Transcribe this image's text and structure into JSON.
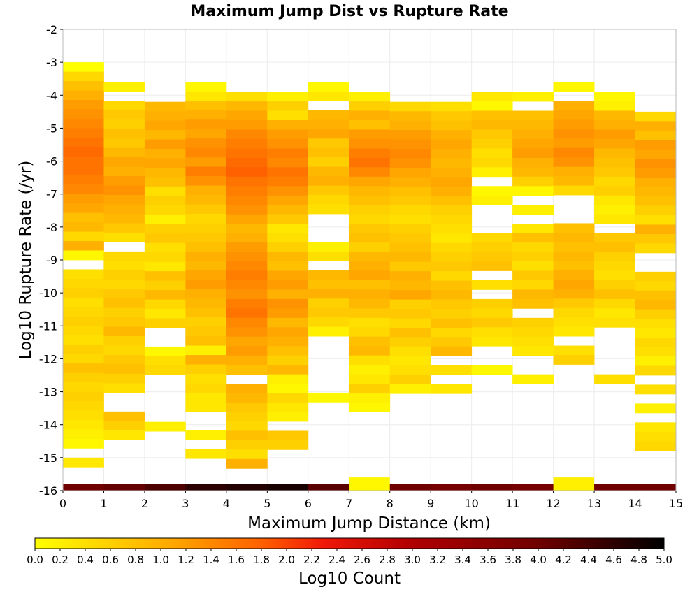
{
  "chart_data": {
    "type": "heatmap",
    "title": "Maximum Jump Dist vs Rupture Rate",
    "xlabel": "Maximum Jump Distance (km)",
    "ylabel": "Log10 Rupture Rate (/yr)",
    "xlim": [
      0,
      15
    ],
    "ylim": [
      -16,
      -2
    ],
    "x_ticks": [
      "0",
      "1",
      "2",
      "3",
      "4",
      "5",
      "6",
      "7",
      "8",
      "9",
      "10",
      "11",
      "12",
      "13",
      "14",
      "15"
    ],
    "y_ticks": [
      "-2",
      "-3",
      "-4",
      "-5",
      "-6",
      "-7",
      "-8",
      "-9",
      "-10",
      "-11",
      "-12",
      "-13",
      "-14",
      "-15",
      "-16"
    ],
    "grid": true,
    "x_bin_width_km": 1,
    "y_bin_height_log10": 0.2857,
    "colorbar": {
      "label": "Log10 Count",
      "range": [
        0.0,
        5.0
      ],
      "ticks": [
        "0.0",
        "0.2",
        "0.4",
        "0.6",
        "0.8",
        "1.0",
        "1.2",
        "1.4",
        "1.6",
        "1.8",
        "2.0",
        "2.2",
        "2.4",
        "2.6",
        "2.8",
        "3.0",
        "3.2",
        "3.4",
        "3.6",
        "3.8",
        "4.0",
        "4.2",
        "4.4",
        "4.6",
        "4.8",
        "5.0"
      ],
      "stops": [
        {
          "v": 0.0,
          "c": "#ffff00"
        },
        {
          "v": 1.0,
          "c": "#ffb000"
        },
        {
          "v": 1.8,
          "c": "#ff6000"
        },
        {
          "v": 2.3,
          "c": "#f01808"
        },
        {
          "v": 3.0,
          "c": "#b00000"
        },
        {
          "v": 4.0,
          "c": "#700000"
        },
        {
          "v": 5.0,
          "c": "#000000"
        }
      ]
    },
    "bottom_row_y": -15.9,
    "bottom_row_values": [
      4.0,
      4.1,
      4.3,
      4.6,
      4.7,
      4.8,
      4.2,
      0.1,
      4.0,
      3.9,
      4.0,
      3.9,
      0.2,
      4.0,
      4.0
    ],
    "columns": [
      {
        "x": 0.5,
        "y_top": -3.0,
        "values": [
          0.0,
          0.5,
          0.8,
          1.0,
          1.2,
          1.3,
          1.4,
          1.5,
          1.6,
          1.7,
          1.6,
          1.6,
          1.5,
          1.4,
          1.2,
          1.1,
          0.8,
          0.9,
          0.5,
          1.0,
          0.1,
          null,
          0.4,
          0.5,
          0.6,
          0.4,
          0.5,
          0.6,
          0.5,
          0.4,
          0.6,
          0.5,
          0.8,
          0.6,
          0.5,
          0.6,
          0.5,
          0.4,
          0.3,
          0.2,
          0.1,
          null,
          0.3
        ]
      },
      {
        "x": 1.5,
        "y_top": -3.6,
        "values": [
          0.2,
          null,
          0.5,
          0.7,
          0.6,
          0.8,
          0.7,
          0.9,
          1.1,
          1.0,
          1.2,
          1.3,
          1.1,
          1.0,
          0.9,
          0.7,
          0.4,
          null,
          0.5,
          0.4,
          0.6,
          0.5,
          0.7,
          0.8,
          0.6,
          0.7,
          0.9,
          0.6,
          0.5,
          0.7,
          0.8,
          0.6,
          0.4,
          null,
          null,
          0.8,
          0.6,
          0.3
        ]
      },
      {
        "x": 2.5,
        "y_top": -4.2,
        "values": [
          0.9,
          1.0,
          1.1,
          0.9,
          1.2,
          1.0,
          1.1,
          0.9,
          0.8,
          0.4,
          0.6,
          0.5,
          0.2,
          0.6,
          0.7,
          0.4,
          0.5,
          0.3,
          0.8,
          0.6,
          0.9,
          0.5,
          0.3,
          0.6,
          null,
          null,
          0.1,
          0.4,
          0.5,
          null,
          null,
          null,
          null,
          null,
          0.2
        ]
      },
      {
        "x": 3.5,
        "y_top": -3.6,
        "values": [
          0.1,
          0.3,
          0.8,
          1.0,
          1.2,
          1.1,
          1.3,
          1.4,
          1.2,
          1.5,
          1.3,
          1.0,
          0.9,
          0.7,
          0.5,
          0.6,
          0.7,
          0.8,
          1.0,
          0.9,
          1.1,
          1.2,
          1.0,
          0.9,
          0.8,
          0.6,
          0.7,
          0.8,
          0.2,
          1.0,
          0.6,
          0.4,
          0.5,
          0.3,
          0.3,
          null,
          null,
          0.2,
          null,
          0.3
        ]
      },
      {
        "x": 4.5,
        "y_top": -3.9,
        "values": [
          0.4,
          0.9,
          1.1,
          1.2,
          1.4,
          1.5,
          1.6,
          1.7,
          1.8,
          1.6,
          1.5,
          1.4,
          1.3,
          1.1,
          0.9,
          1.0,
          1.2,
          1.3,
          1.4,
          1.5,
          1.4,
          1.3,
          1.5,
          1.6,
          1.4,
          1.3,
          1.1,
          1.2,
          1.0,
          0.8,
          null,
          1.0,
          0.9,
          0.7,
          0.6,
          0.5,
          0.8,
          0.6,
          0.4,
          1.0
        ]
      },
      {
        "x": 5.5,
        "y_top": -3.9,
        "values": [
          0.2,
          0.6,
          0.4,
          1.0,
          1.2,
          1.3,
          1.5,
          1.4,
          1.6,
          1.5,
          1.3,
          1.1,
          0.9,
          0.7,
          0.3,
          0.4,
          0.6,
          0.9,
          0.8,
          1.1,
          1.2,
          1.0,
          1.3,
          1.2,
          0.9,
          1.1,
          1.0,
          0.8,
          0.6,
          0.9,
          0.2,
          0.1,
          0.5,
          0.3,
          0.2,
          null,
          0.7,
          0.6
        ]
      },
      {
        "x": 6.5,
        "y_top": -3.6,
        "values": [
          0.1,
          0.3,
          null,
          0.9,
          1.0,
          1.1,
          0.7,
          0.8,
          0.6,
          0.9,
          1.0,
          0.7,
          0.5,
          0.4,
          null,
          null,
          null,
          0.2,
          0.4,
          null,
          0.9,
          0.8,
          1.0,
          0.6,
          0.7,
          0.5,
          0.2,
          null,
          null,
          null,
          null,
          null,
          null,
          0.1,
          null
        ]
      },
      {
        "x": 7.5,
        "y_top": -3.9,
        "values": [
          0.2,
          0.6,
          1.0,
          0.8,
          1.2,
          1.3,
          1.5,
          1.6,
          1.4,
          1.1,
          0.9,
          0.8,
          0.6,
          0.5,
          0.7,
          0.8,
          0.6,
          0.9,
          1.0,
          1.1,
          0.8,
          1.0,
          0.9,
          0.7,
          0.4,
          0.5,
          0.8,
          0.9,
          0.4,
          0.2,
          0.3,
          0.6,
          0.2,
          0.1
        ]
      },
      {
        "x": 8.5,
        "y_top": -4.2,
        "values": [
          0.5,
          0.9,
          1.0,
          1.2,
          1.3,
          1.4,
          1.3,
          1.1,
          1.0,
          0.8,
          0.7,
          0.5,
          0.4,
          0.6,
          0.7,
          0.8,
          0.9,
          0.7,
          1.0,
          0.9,
          1.1,
          0.6,
          0.7,
          0.5,
          0.8,
          0.6,
          0.4,
          0.3,
          0.4,
          0.6,
          0.2
        ]
      },
      {
        "x": 9.5,
        "y_top": -4.2,
        "values": [
          0.4,
          0.7,
          0.8,
          1.0,
          1.1,
          1.0,
          0.9,
          1.0,
          1.1,
          1.0,
          0.8,
          0.6,
          0.5,
          0.4,
          0.3,
          0.5,
          0.6,
          0.7,
          0.5,
          0.8,
          0.9,
          0.7,
          0.6,
          0.8,
          0.5,
          0.7,
          0.9,
          null,
          0.4,
          null,
          0.3
        ]
      },
      {
        "x": 10.5,
        "y_top": -3.9,
        "values": [
          0.3,
          0.1,
          0.8,
          0.9,
          0.7,
          0.6,
          0.4,
          0.5,
          0.2,
          null,
          0.1,
          0.2,
          null,
          null,
          null,
          0.5,
          0.6,
          0.7,
          0.8,
          null,
          0.4,
          null,
          0.6,
          0.5,
          0.7,
          0.4,
          0.3,
          null,
          null,
          0.1
        ]
      },
      {
        "x": 11.5,
        "y_top": -3.9,
        "values": [
          0.2,
          null,
          0.8,
          0.9,
          1.0,
          1.1,
          1.2,
          1.0,
          0.9,
          0.6,
          0.1,
          null,
          0.2,
          null,
          0.3,
          0.8,
          0.5,
          0.6,
          0.4,
          0.7,
          0.5,
          0.9,
          0.8,
          null,
          0.6,
          0.5,
          0.4,
          0.3,
          null,
          null,
          0.2
        ]
      },
      {
        "x": 12.5,
        "y_top": -3.6,
        "values": [
          0.1,
          null,
          1.0,
          1.1,
          1.2,
          1.3,
          1.2,
          1.4,
          1.3,
          1.0,
          0.9,
          0.5,
          null,
          null,
          null,
          0.8,
          0.9,
          0.8,
          0.9,
          0.8,
          1.0,
          1.1,
          1.0,
          0.7,
          0.5,
          0.4,
          0.3,
          null,
          0.4,
          0.6
        ]
      },
      {
        "x": 13.5,
        "y_top": -3.9,
        "values": [
          0.1,
          0.2,
          0.9,
          1.0,
          1.2,
          1.1,
          0.9,
          0.8,
          0.7,
          0.5,
          0.6,
          0.3,
          0.2,
          0.3,
          null,
          0.7,
          0.8,
          0.6,
          0.5,
          0.4,
          0.6,
          0.8,
          0.5,
          0.3,
          0.4,
          null,
          null,
          null,
          null,
          null,
          0.4
        ]
      },
      {
        "x": 14.5,
        "y_top": -4.5,
        "values": [
          0.5,
          1.0,
          0.8,
          1.2,
          1.1,
          1.3,
          1.2,
          1.0,
          0.9,
          0.8,
          0.6,
          0.4,
          1.0,
          0.7,
          0.5,
          null,
          null,
          0.6,
          0.5,
          0.8,
          0.9,
          0.6,
          0.4,
          0.3,
          0.5,
          0.4,
          0.2,
          0.5,
          null,
          0.4,
          null,
          0.2,
          null,
          0.3,
          0.4,
          0.5
        ]
      }
    ]
  }
}
